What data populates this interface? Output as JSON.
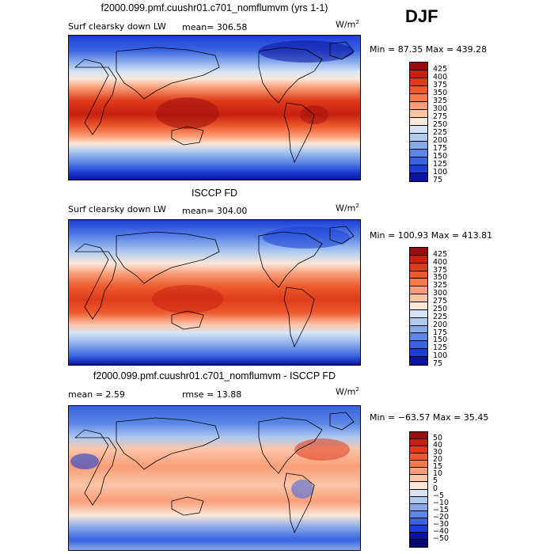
{
  "season": "DJF",
  "panels": [
    {
      "title": "f2000.099.pmf.cuushr01.c701_nomflumvm (yrs 1-1)",
      "field_label": "Surf clearsky down LW",
      "mean_label": "mean= 306.58",
      "units": "W/m",
      "units_exp": "2",
      "minmax": "Min =  87.35 Max = 439.28"
    },
    {
      "title": "ISCCP FD",
      "field_label": "Surf clearsky down LW",
      "mean_label": "mean= 304.00",
      "units": "W/m",
      "units_exp": "2",
      "minmax": "Min = 100.93 Max = 413.81"
    },
    {
      "title": "f2000.099.pmf.cuushr01.c701_nomflumvm - ISCCP FD",
      "mean_label": "mean =   2.59",
      "rmse_label": "rmse =   13.88",
      "units": "W/m",
      "units_exp": "2",
      "minmax": "Min = −63.57 Max =  35.45"
    }
  ],
  "chart_data": [
    {
      "type": "heatmap",
      "title": "f2000.099.pmf.cuushr01.c701_nomflumvm (yrs 1-1)",
      "variable": "Surf clearsky down LW",
      "units": "W/m2",
      "mean": 306.58,
      "min": 87.35,
      "max": 439.28,
      "colorbar_levels": [
        "425",
        "400",
        "375",
        "350",
        "325",
        "300",
        "275",
        "250",
        "225",
        "200",
        "175",
        "150",
        "125",
        "100",
        "75"
      ],
      "colorbar_colors": [
        "#9b0d0d",
        "#c8200e",
        "#de3b1a",
        "#ee5a2e",
        "#f47a4c",
        "#f99e78",
        "#fcc5a8",
        "#fbe8d9",
        "#d6e3f5",
        "#b0caf0",
        "#86aaea",
        "#5b86e6",
        "#3963e0",
        "#1c3ed6",
        "#0a12a0"
      ]
    },
    {
      "type": "heatmap",
      "title": "ISCCP FD",
      "variable": "Surf clearsky down LW",
      "units": "W/m2",
      "mean": 304.0,
      "min": 100.93,
      "max": 413.81,
      "colorbar_levels": [
        "425",
        "400",
        "375",
        "350",
        "325",
        "300",
        "275",
        "250",
        "225",
        "200",
        "175",
        "150",
        "125",
        "100",
        "75"
      ],
      "colorbar_colors": [
        "#9b0d0d",
        "#c8200e",
        "#de3b1a",
        "#ee5a2e",
        "#f47a4c",
        "#f99e78",
        "#fcc5a8",
        "#fbe8d9",
        "#d6e3f5",
        "#b0caf0",
        "#86aaea",
        "#5b86e6",
        "#3963e0",
        "#1c3ed6",
        "#0a12a0"
      ]
    },
    {
      "type": "heatmap",
      "title": "f2000.099.pmf.cuushr01.c701_nomflumvm - ISCCP FD",
      "variable": "difference",
      "units": "W/m2",
      "mean": 2.59,
      "rmse": 13.88,
      "min": -63.57,
      "max": 35.45,
      "colorbar_levels": [
        "50",
        "40",
        "30",
        "20",
        "15",
        "10",
        "5",
        "0",
        "−5",
        "−10",
        "−15",
        "−20",
        "−30",
        "−40",
        "−50"
      ],
      "colorbar_colors": [
        "#9b0d0d",
        "#c8200e",
        "#de3b1a",
        "#ee5a2e",
        "#f47a4c",
        "#f99e78",
        "#fcc5a8",
        "#fbe8d9",
        "#d6e3f5",
        "#b0caf0",
        "#86aaea",
        "#5b86e6",
        "#3963e0",
        "#1c3ed6",
        "#0a12a0",
        "#050a70"
      ]
    }
  ]
}
